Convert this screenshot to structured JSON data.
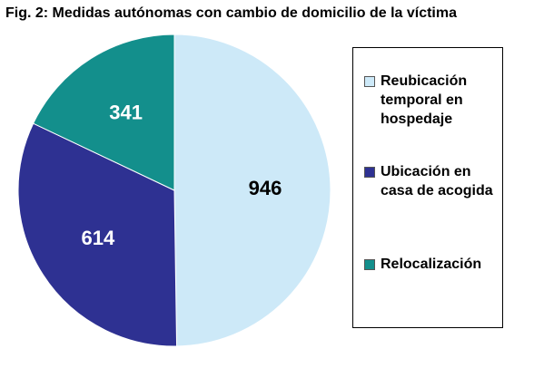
{
  "chart_data": {
    "type": "pie",
    "title": "Fig. 2: Medidas autónomas con cambio de domicilio de la víctima",
    "categories": [
      "Reubicación temporal en hospedaje",
      "Ubicación en casa de acogida",
      "Relocalización"
    ],
    "values": [
      946,
      614,
      341
    ],
    "colors": [
      "#cde9f8",
      "#2e3192",
      "#138f8c"
    ],
    "label_colors": [
      "#000000",
      "#ffffff",
      "#ffffff"
    ],
    "legend": "right"
  }
}
